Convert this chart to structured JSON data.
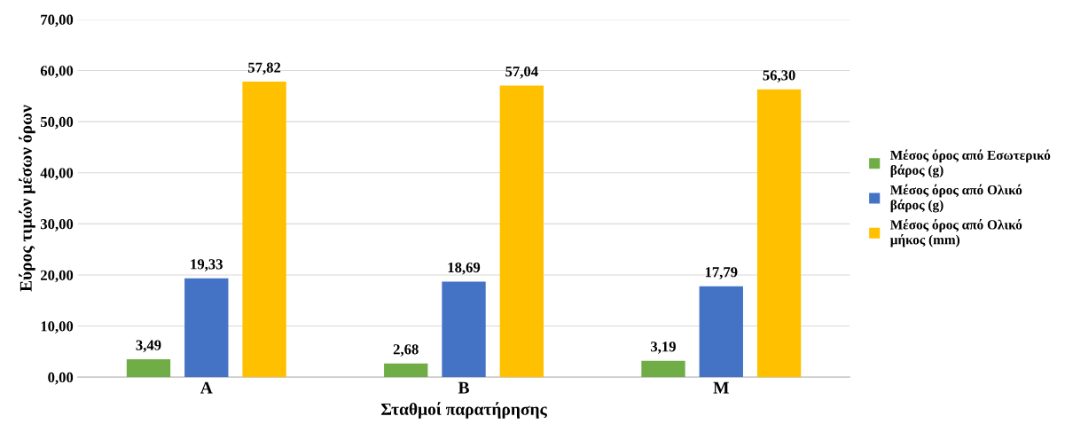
{
  "chart_data": {
    "type": "bar",
    "xlabel": "Σταθμοί παρατήρησης",
    "ylabel": "Εύρος τιμών μέσων όρων",
    "categories": [
      "A",
      "B",
      "M"
    ],
    "series": [
      {
        "name": "Μέσος όρος από Εσωτερικό βάρος (g)",
        "color": "#70ad47",
        "values": [
          3.49,
          2.68,
          3.19
        ],
        "value_labels": [
          "3,49",
          "2,68",
          "3,19"
        ]
      },
      {
        "name": "Μέσος όρος από Ολικό βάρος (g)",
        "color": "#4472c4",
        "values": [
          19.33,
          18.69,
          17.79
        ],
        "value_labels": [
          "19,33",
          "18,69",
          "17,79"
        ]
      },
      {
        "name": "Μέσος όρος από Ολικό μήκος (mm)",
        "color": "#ffc000",
        "values": [
          57.82,
          57.04,
          56.3
        ],
        "value_labels": [
          "57,82",
          "57,04",
          "56,30"
        ]
      }
    ],
    "ylim": [
      0,
      70
    ],
    "yticks": [
      {
        "value": 0,
        "label": "0,00"
      },
      {
        "value": 10,
        "label": "10,00"
      },
      {
        "value": 20,
        "label": "20,00"
      },
      {
        "value": 30,
        "label": "30,00"
      },
      {
        "value": 40,
        "label": "40,00"
      },
      {
        "value": 50,
        "label": "50,00"
      },
      {
        "value": 60,
        "label": "60,00"
      },
      {
        "value": 70,
        "label": "70,00"
      }
    ],
    "grid": "y",
    "legend": "right"
  }
}
